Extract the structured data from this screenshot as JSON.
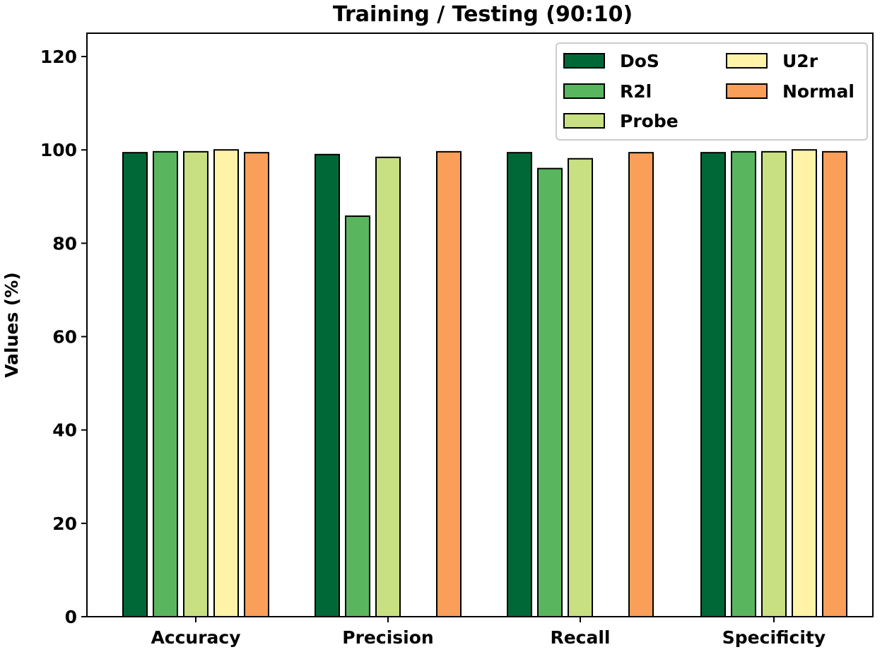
{
  "chart_data": {
    "type": "bar",
    "title": "Training / Testing (90:10)",
    "xlabel": "",
    "ylabel": "Values (%)",
    "ylim": [
      0,
      125
    ],
    "yticks": [
      0,
      20,
      40,
      60,
      80,
      100,
      120
    ],
    "categories": [
      "Accuracy",
      "Precision",
      "Recall",
      "Specificity"
    ],
    "series": [
      {
        "name": "DoS",
        "color": "#006837",
        "values": [
          99.4,
          99.0,
          99.4,
          99.4
        ]
      },
      {
        "name": "R2l",
        "color": "#5ab55f",
        "values": [
          99.6,
          85.8,
          96.0,
          99.6
        ]
      },
      {
        "name": "Probe",
        "color": "#c8e082",
        "values": [
          99.6,
          98.4,
          98.1,
          99.6
        ]
      },
      {
        "name": "U2r",
        "color": "#fef3a6",
        "values": [
          100.0,
          null,
          null,
          100.0
        ]
      },
      {
        "name": "Normal",
        "color": "#f99f5a",
        "values": [
          99.4,
          99.6,
          99.4,
          99.6
        ]
      }
    ],
    "legend": {
      "position": "top-right",
      "columns": 2
    },
    "grid": false
  }
}
